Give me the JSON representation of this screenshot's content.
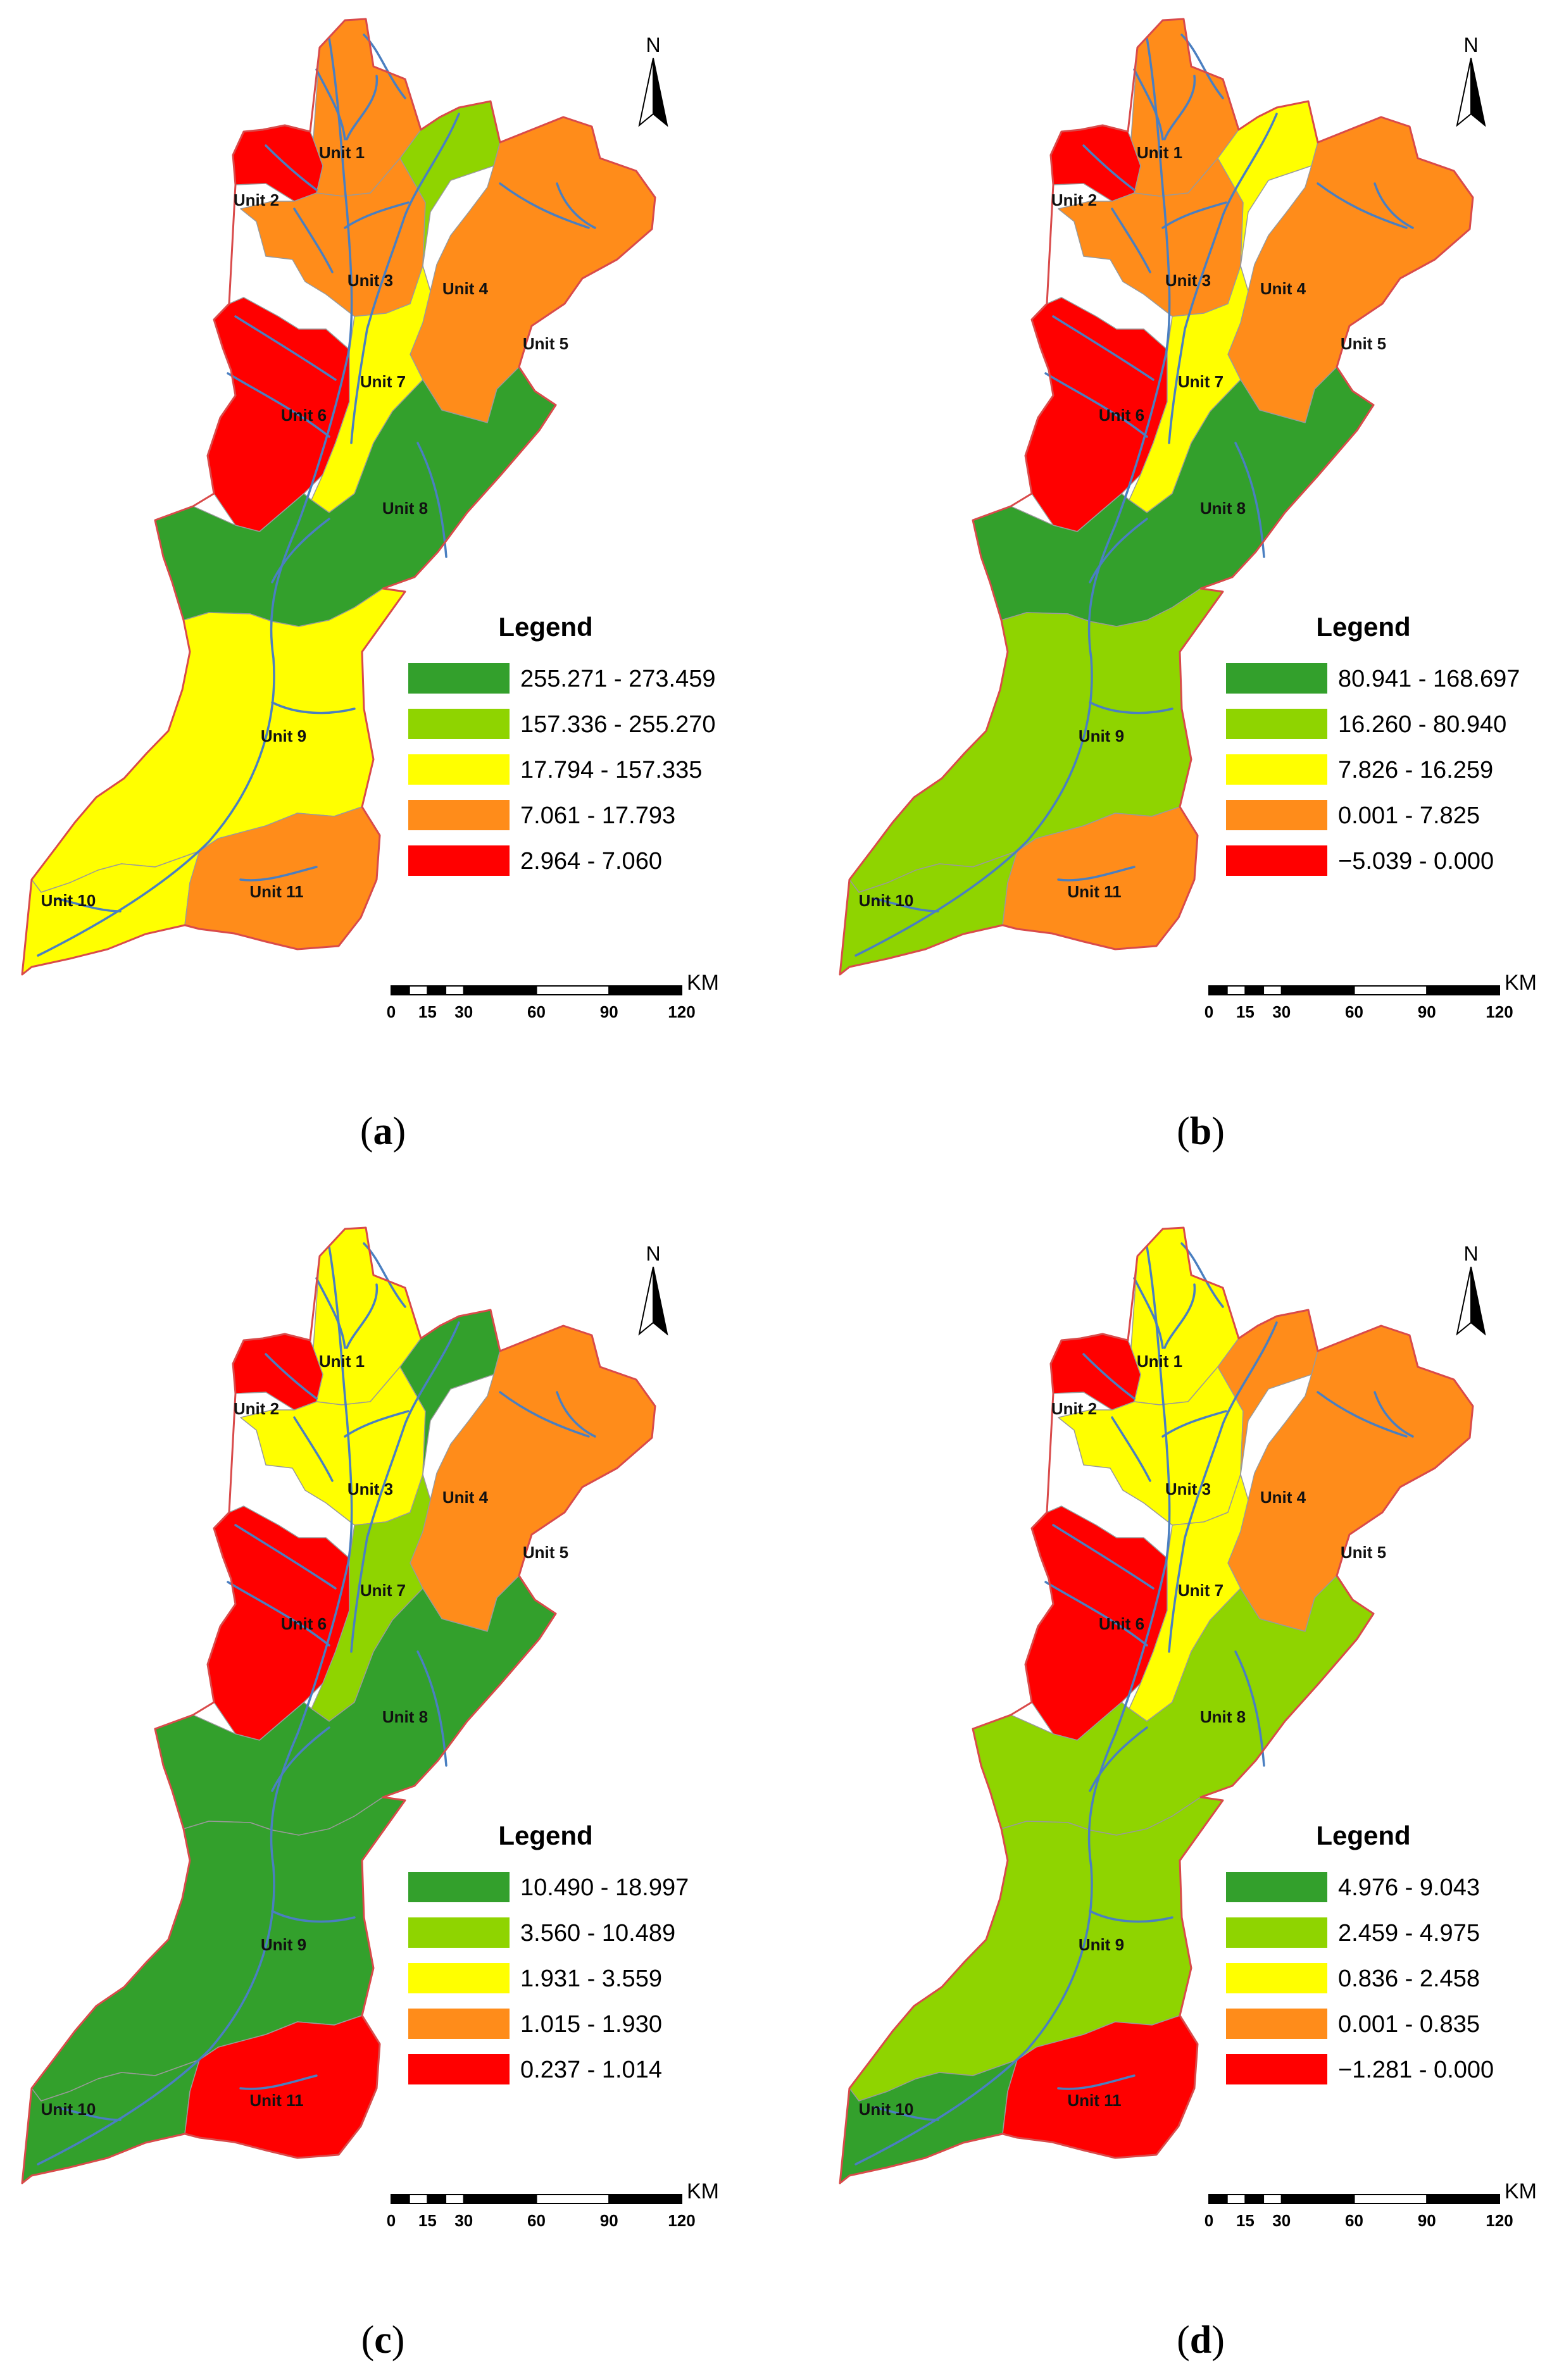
{
  "colors": {
    "dark_green": "#33A02C",
    "light_green": "#8FD400",
    "yellow": "#FFFF00",
    "orange": "#FF8C1A",
    "red": "#FF0000",
    "boundary": "#D94A4A",
    "river": "#4A7FC1"
  },
  "units": [
    "Unit 1",
    "Unit 2",
    "Unit 3",
    "Unit 4",
    "Unit 5",
    "Unit 6",
    "Unit 7",
    "Unit 8",
    "Unit 9",
    "Unit 10",
    "Unit 11"
  ],
  "north_label": "N",
  "legend_title": "Legend",
  "scale": {
    "ticks": [
      "0",
      "15",
      "30",
      "60",
      "90",
      "120"
    ],
    "unit": "KM"
  },
  "panels": [
    {
      "caption_letter": "a",
      "legend": [
        "255.271 - 273.459",
        "157.336 - 255.270",
        "17.794 - 157.335",
        "7.061 - 17.793",
        "2.964 - 7.060"
      ],
      "unit_class": [
        3,
        4,
        3,
        1,
        3,
        4,
        2,
        0,
        2,
        2,
        3
      ]
    },
    {
      "caption_letter": "b",
      "legend": [
        "80.941 - 168.697",
        "16.260 - 80.940",
        "7.826 - 16.259",
        "0.001 - 7.825",
        "−5.039 - 0.000"
      ],
      "unit_class": [
        3,
        4,
        3,
        2,
        3,
        4,
        2,
        0,
        1,
        1,
        3
      ]
    },
    {
      "caption_letter": "c",
      "legend": [
        "10.490 - 18.997",
        "3.560 - 10.489",
        "1.931 - 3.559",
        "1.015 - 1.930",
        "0.237 - 1.014"
      ],
      "unit_class": [
        2,
        4,
        2,
        0,
        3,
        4,
        1,
        0,
        0,
        0,
        4
      ]
    },
    {
      "caption_letter": "d",
      "legend": [
        "4.976 - 9.043",
        "2.459 - 4.975",
        "0.836 - 2.458",
        "0.001 - 0.835",
        "−1.281 - 0.000"
      ],
      "unit_class": [
        2,
        4,
        2,
        3,
        3,
        4,
        2,
        1,
        1,
        0,
        4
      ]
    }
  ]
}
